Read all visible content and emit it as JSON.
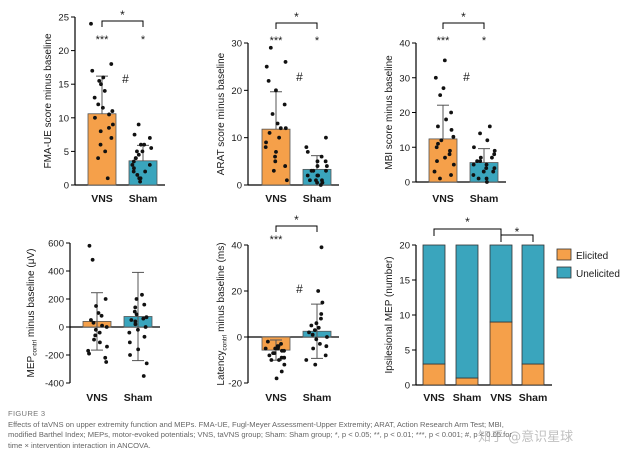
{
  "colors": {
    "vns": "#f5a04a",
    "sham": "#3aa5bd",
    "text": "#1a1a1a"
  },
  "chart_data": [
    {
      "type": "bar",
      "id": "fma",
      "ylabel": "FMA-UE score minus baseline",
      "categories": [
        "VNS",
        "Sham"
      ],
      "values": [
        10.6,
        3.6
      ],
      "sd": [
        5.6,
        2.3
      ],
      "ylim": [
        0,
        25
      ],
      "yticks": [
        0,
        5,
        10,
        15,
        20,
        25
      ],
      "points": [
        [
          24,
          18,
          17,
          16,
          15.5,
          15,
          14,
          13,
          12,
          11.5,
          11,
          10.5,
          10,
          9,
          8.5,
          8,
          7,
          6,
          5,
          4,
          1
        ],
        [
          9,
          7.5,
          7,
          6,
          6,
          5.5,
          5,
          5,
          4.5,
          4,
          4,
          3.5,
          3,
          3,
          2.5,
          2,
          2,
          1.5,
          1,
          1,
          0.5
        ]
      ],
      "annotations": {
        "bracket": "*",
        "vns": "***",
        "sham": "*",
        "hash": "#"
      }
    },
    {
      "type": "bar",
      "id": "arat",
      "ylabel": "ARAT score minus baseline",
      "categories": [
        "VNS",
        "Sham"
      ],
      "values": [
        11.8,
        3.3
      ],
      "sd": [
        7.9,
        2.9
      ],
      "ylim": [
        0,
        30
      ],
      "yticks": [
        0,
        10,
        20,
        30
      ],
      "points": [
        [
          29,
          26,
          25,
          22,
          20,
          17,
          15,
          13,
          12,
          12,
          11,
          10,
          9,
          8,
          7,
          6,
          5,
          4,
          3,
          1
        ],
        [
          10,
          8,
          7,
          6,
          5,
          5,
          4,
          4,
          3,
          3,
          3,
          2,
          2,
          2,
          1,
          1,
          1,
          0.5,
          0.5,
          0
        ]
      ],
      "annotations": {
        "bracket": "*",
        "vns": "***",
        "sham": "*",
        "hash": "#"
      }
    },
    {
      "type": "bar",
      "id": "mbi",
      "ylabel": "MBI score minus baseline",
      "categories": [
        "VNS",
        "Sham"
      ],
      "values": [
        12.4,
        5.6
      ],
      "sd": [
        9.7,
        4.0
      ],
      "ylim": [
        0,
        40
      ],
      "yticks": [
        0,
        10,
        20,
        30,
        40
      ],
      "points": [
        [
          35,
          30,
          27,
          25,
          20,
          18,
          16,
          15,
          13,
          12,
          11,
          10,
          9,
          8,
          7,
          6,
          5,
          3,
          2,
          1
        ],
        [
          16,
          14,
          12,
          10,
          9,
          8,
          7,
          7,
          6,
          6,
          5,
          5,
          4,
          4,
          3,
          3,
          2,
          1,
          1,
          0
        ]
      ],
      "annotations": {
        "bracket": "*",
        "vns": "***",
        "sham": "*",
        "hash": "#"
      }
    },
    {
      "type": "bar",
      "id": "mep",
      "ylabel_parts": [
        "MEP",
        "contrl",
        " minus baseline (μV)"
      ],
      "categories": [
        "VNS",
        "Sham"
      ],
      "values": [
        40,
        75
      ],
      "sd": [
        205,
        315
      ],
      "ylim": [
        -400,
        600
      ],
      "yticks": [
        -400,
        -200,
        0,
        200,
        400,
        600
      ],
      "points": [
        [
          580,
          480,
          200,
          150,
          100,
          80,
          50,
          30,
          10,
          0,
          -20,
          -40,
          -60,
          -90,
          -110,
          -140,
          -170,
          -190,
          -220,
          -250
        ],
        [
          230,
          200,
          160,
          140,
          110,
          90,
          70,
          60,
          50,
          40,
          20,
          0,
          -20,
          -40,
          -70,
          -110,
          -160,
          -200,
          -260,
          -350
        ]
      ],
      "annotations": {}
    },
    {
      "type": "bar",
      "id": "latency",
      "ylabel_parts": [
        "Latency",
        "contrl",
        " minus baseline (ms)"
      ],
      "categories": [
        "VNS",
        "Sham"
      ],
      "values": [
        -5.7,
        2.5
      ],
      "sd": [
        4.4,
        11.8
      ],
      "ylim": [
        -20,
        40
      ],
      "yticks": [
        -20,
        0,
        20,
        40
      ],
      "points": [
        [
          -2,
          -3,
          -4,
          -4,
          -5,
          -5,
          -5,
          -6,
          -6,
          -7,
          -7,
          -8,
          -9,
          -9,
          -10,
          -10,
          -12,
          -15,
          -18
        ],
        [
          39,
          20,
          15,
          10,
          8,
          6,
          5,
          4,
          3,
          2,
          1,
          0,
          -1,
          -3,
          -4,
          -5,
          -8,
          -10,
          -12
        ]
      ],
      "annotations": {
        "bracket": "*",
        "vns": "***",
        "hash": "#"
      }
    },
    {
      "type": "bar",
      "stacked": true,
      "id": "ipsi",
      "ylabel": "Ipsilesional MEP (number)",
      "categories": [
        "VNS",
        "Sham",
        "VNS",
        "Sham"
      ],
      "series": [
        {
          "name": "Elicited",
          "values": [
            3,
            1,
            9,
            3
          ]
        },
        {
          "name": "Unelicited",
          "values": [
            17,
            19,
            11,
            17
          ]
        }
      ],
      "ylim": [
        0,
        20
      ],
      "yticks": [
        0,
        5,
        10,
        15,
        20
      ],
      "legend": "right",
      "annotations": {
        "bracket1": "*",
        "bracket2": "*"
      }
    }
  ],
  "caption": {
    "label": "FIGURE 3",
    "line1": "Effects of taVNS on upper extremity function and MEPs. FMA-UE, Fugl-Meyer Assessment-Upper Extremity; ARAT, Action Research Arm Test; MBI,",
    "line2": "modified Barthel Index; MEPs, motor-evoked potentials; VNS, taVNS group; Sham: Sham group; *, p < 0.05; **, p < 0.01; ***, p < 0.001; #, p < 0.05 for",
    "line3": "time × intervention interaction in ANCOVA."
  },
  "watermark": "知乎 @意识星球"
}
